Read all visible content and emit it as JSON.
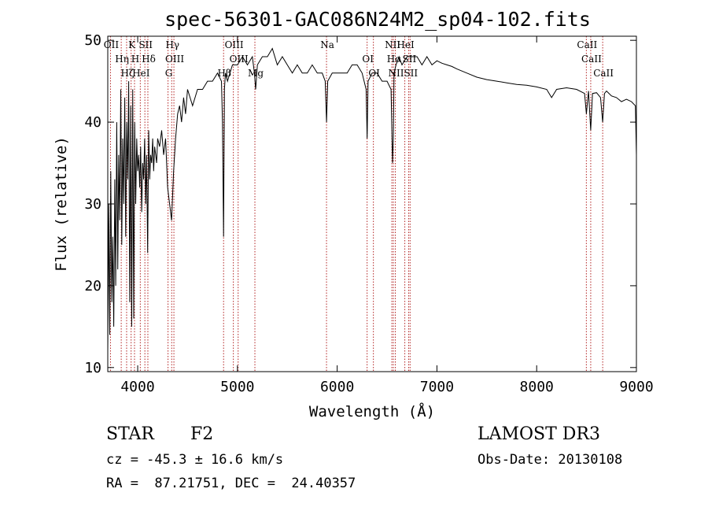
{
  "chart_data": {
    "type": "line",
    "title": "spec-56301-GAC086N24M2_sp04-102.fits",
    "xlabel": "Wavelength (Å)",
    "ylabel": "Flux (relative)",
    "xlim": [
      3700,
      9000
    ],
    "ylim": [
      9.5,
      50.5
    ],
    "x_ticks": [
      4000,
      5000,
      6000,
      7000,
      8000,
      9000
    ],
    "y_ticks": [
      10,
      20,
      30,
      40,
      50
    ],
    "line_color": "#000000",
    "marker_color": "#b22222",
    "series": [
      {
        "name": "flux",
        "x": [
          3700,
          3710,
          3720,
          3730,
          3740,
          3750,
          3760,
          3770,
          3780,
          3790,
          3800,
          3810,
          3820,
          3830,
          3840,
          3850,
          3860,
          3870,
          3880,
          3890,
          3900,
          3910,
          3920,
          3930,
          3940,
          3950,
          3960,
          3970,
          3980,
          3990,
          4000,
          4010,
          4020,
          4030,
          4040,
          4050,
          4060,
          4070,
          4080,
          4090,
          4100,
          4110,
          4120,
          4130,
          4140,
          4150,
          4160,
          4170,
          4180,
          4190,
          4200,
          4220,
          4240,
          4260,
          4280,
          4300,
          4320,
          4340,
          4360,
          4380,
          4400,
          4420,
          4440,
          4460,
          4480,
          4500,
          4550,
          4600,
          4650,
          4700,
          4750,
          4800,
          4840,
          4850,
          4861,
          4870,
          4880,
          4900,
          4950,
          5000,
          5050,
          5100,
          5150,
          5170,
          5183,
          5200,
          5250,
          5300,
          5350,
          5400,
          5450,
          5500,
          5550,
          5600,
          5650,
          5700,
          5750,
          5800,
          5850,
          5880,
          5893,
          5905,
          5950,
          6000,
          6050,
          6100,
          6150,
          6200,
          6250,
          6290,
          6300,
          6310,
          6350,
          6400,
          6450,
          6500,
          6540,
          6555,
          6563,
          6570,
          6590,
          6620,
          6650,
          6700,
          6750,
          6800,
          6850,
          6900,
          6950,
          7000,
          7050,
          7100,
          7150,
          7200,
          7300,
          7400,
          7500,
          7600,
          7700,
          7800,
          7900,
          8000,
          8100,
          8150,
          8200,
          8300,
          8400,
          8480,
          8498,
          8520,
          8542,
          8560,
          8600,
          8640,
          8662,
          8680,
          8700,
          8750,
          8800,
          8850,
          8900,
          8950,
          8990,
          9000
        ],
        "y": [
          12,
          30,
          14,
          34,
          18,
          26,
          15,
          33,
          20,
          40,
          22,
          36,
          28,
          44,
          25,
          38,
          30,
          43,
          26,
          40,
          33,
          45,
          18,
          42,
          15,
          44,
          16,
          40,
          30,
          38,
          34,
          36,
          32,
          37,
          29,
          35,
          33,
          38,
          30,
          36,
          24,
          39,
          33,
          36,
          35,
          38,
          34,
          37,
          36,
          35,
          38,
          37,
          39,
          36,
          38,
          32,
          30,
          28,
          34,
          38,
          41,
          42,
          40,
          43,
          41,
          44,
          42,
          44,
          44,
          45,
          45,
          46,
          45,
          40,
          26,
          44,
          46,
          45,
          47,
          47,
          48,
          47,
          48,
          46,
          44,
          47,
          48,
          48,
          49,
          47,
          48,
          47,
          46,
          47,
          46,
          46,
          47,
          46,
          46,
          45,
          40,
          45,
          46,
          46,
          46,
          46,
          47,
          47,
          46,
          44,
          38,
          45,
          46,
          46,
          45,
          45,
          44,
          35,
          38,
          46,
          47,
          48,
          47,
          48,
          48,
          48,
          47,
          48,
          47,
          47.5,
          47.2,
          47,
          46.8,
          46.5,
          46,
          45.5,
          45.2,
          45,
          44.8,
          44.6,
          44.5,
          44.3,
          44,
          43,
          44,
          44.2,
          44,
          43.5,
          41,
          43.8,
          39,
          43.5,
          43.6,
          43,
          40,
          43.5,
          43.8,
          43.2,
          43,
          42.5,
          42.8,
          42.5,
          42,
          36
        ]
      }
    ],
    "spectral_lines": [
      {
        "wavelength": 3727,
        "label": "OII"
      },
      {
        "wavelength": 3835,
        "label": "Hη"
      },
      {
        "wavelength": 3889,
        "label": "Hζ"
      },
      {
        "wavelength": 3934,
        "label": "K"
      },
      {
        "wavelength": 3968,
        "label": "H"
      },
      {
        "wavelength": 4026,
        "label": "HeI"
      },
      {
        "wavelength": 4072,
        "label": "SII"
      },
      {
        "wavelength": 4102,
        "label": "Hδ"
      },
      {
        "wavelength": 4304,
        "label": "G"
      },
      {
        "wavelength": 4341,
        "label": "Hγ"
      },
      {
        "wavelength": 4363,
        "label": "OIII"
      },
      {
        "wavelength": 4861,
        "label": "Hβ"
      },
      {
        "wavelength": 4959,
        "label": "OIII"
      },
      {
        "wavelength": 5007,
        "label": "OIII"
      },
      {
        "wavelength": 5175,
        "label": "Mg"
      },
      {
        "wavelength": 5893,
        "label": "Na"
      },
      {
        "wavelength": 6300,
        "label": "OI"
      },
      {
        "wavelength": 6363,
        "label": "OI"
      },
      {
        "wavelength": 6548,
        "label": "NII"
      },
      {
        "wavelength": 6563,
        "label": "Hα"
      },
      {
        "wavelength": 6583,
        "label": "NII"
      },
      {
        "wavelength": 6678,
        "label": "HeI"
      },
      {
        "wavelength": 6716,
        "label": "SII"
      },
      {
        "wavelength": 6731,
        "label": "SII"
      },
      {
        "wavelength": 8498,
        "label": "CaII"
      },
      {
        "wavelength": 8542,
        "label": "CaII"
      },
      {
        "wavelength": 8662,
        "label": "CaII"
      }
    ]
  },
  "info": {
    "object_type": "STAR",
    "spectral_class": "F2",
    "survey": "LAMOST DR3",
    "redshift": "cz = -45.3 ± 16.6 km/s",
    "obs_date": "Obs-Date: 20130108",
    "coordinates": "RA =  87.21751, DEC =  24.40357"
  }
}
